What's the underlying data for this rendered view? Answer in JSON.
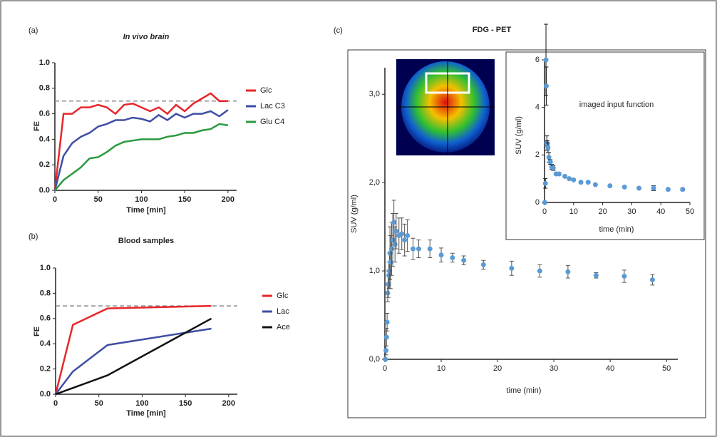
{
  "chart_data": [
    {
      "type": "line",
      "label": "(a)",
      "title": "In vivo brain",
      "xlabel": "Time [min]",
      "ylabel": "FE",
      "x": [
        0,
        10,
        20,
        30,
        40,
        50,
        60,
        70,
        80,
        90,
        100,
        110,
        120,
        130,
        140,
        150,
        160,
        170,
        180,
        190,
        200
      ],
      "series": [
        {
          "name": "Glc",
          "color": "#e8262a",
          "values": [
            0,
            0.6,
            0.6,
            0.65,
            0.65,
            0.67,
            0.65,
            0.6,
            0.67,
            0.68,
            0.65,
            0.62,
            0.65,
            0.6,
            0.67,
            0.62,
            0.68,
            0.72,
            0.76,
            0.7,
            0.7
          ]
        },
        {
          "name": "Lac C3",
          "color": "#3f4ea3",
          "values": [
            0,
            0.27,
            0.37,
            0.42,
            0.45,
            0.5,
            0.52,
            0.55,
            0.55,
            0.57,
            0.56,
            0.54,
            0.59,
            0.55,
            0.6,
            0.57,
            0.6,
            0.6,
            0.62,
            0.58,
            0.63
          ]
        },
        {
          "name": "Glu C4",
          "color": "#2a9a3e",
          "values": [
            0,
            0.08,
            0.13,
            0.18,
            0.25,
            0.26,
            0.3,
            0.35,
            0.38,
            0.39,
            0.4,
            0.4,
            0.4,
            0.42,
            0.43,
            0.45,
            0.45,
            0.47,
            0.48,
            0.52,
            0.51
          ]
        }
      ],
      "reference_line": 0.7,
      "xlim": [
        0,
        210
      ],
      "xticks": [
        0,
        50,
        100,
        150,
        200
      ],
      "ylim": [
        0,
        1
      ],
      "yticks": [
        {
          "value": 0,
          "label": "0.0"
        },
        0.2,
        0.4,
        0.6,
        0.8,
        {
          "value": 1,
          "label": "1.0"
        }
      ]
    },
    {
      "type": "line",
      "label": "(b)",
      "title": "Blood samples",
      "xlabel": "Time [min]",
      "ylabel": "FE",
      "x": [
        0,
        20,
        60,
        180
      ],
      "series": [
        {
          "name": "Glc",
          "color": "#e8262a",
          "values": [
            0,
            0.55,
            0.68,
            0.7
          ]
        },
        {
          "name": "Lac",
          "color": "#3f4ea3",
          "values": [
            0,
            0.18,
            0.39,
            0.52
          ]
        },
        {
          "name": "Ace",
          "color": "#111111",
          "values": [
            0,
            0.05,
            0.15,
            0.6
          ]
        }
      ],
      "reference_line": 0.7,
      "xlim": [
        0,
        210
      ],
      "xticks": [
        0,
        50,
        100,
        150,
        200
      ],
      "ylim": [
        0,
        1
      ],
      "yticks": [
        {
          "value": 0,
          "label": "0.0"
        },
        0.2,
        0.4,
        0.6,
        0.8,
        {
          "value": 1,
          "label": "1.0"
        }
      ]
    },
    {
      "type": "scatter",
      "label": "(c)",
      "title": "FDG - PET",
      "xlabel": "time (min)",
      "ylabel": "SUV  (g/ml)",
      "color": "#5b9bd5",
      "errorbar_color": "#555555",
      "x": [
        0.1,
        0.2,
        0.3,
        0.4,
        0.5,
        0.6,
        0.7,
        0.8,
        0.9,
        1.0,
        1.2,
        1.4,
        1.6,
        1.8,
        2.0,
        2.5,
        3.0,
        3.5,
        4.0,
        5.0,
        6,
        8,
        10,
        12,
        14,
        17.5,
        22.5,
        27.5,
        32.5,
        37.5,
        42.5,
        47.5
      ],
      "values": [
        0.0,
        0.1,
        0.25,
        0.42,
        0.75,
        0.85,
        0.95,
        1.0,
        1.2,
        1.1,
        1.25,
        1.35,
        1.55,
        1.3,
        1.45,
        1.4,
        1.42,
        1.35,
        1.4,
        1.25,
        1.25,
        1.25,
        1.18,
        1.15,
        1.12,
        1.07,
        1.03,
        1.0,
        0.99,
        0.95,
        0.94,
        0.9
      ],
      "errors": [
        0,
        0.05,
        0.1,
        0.1,
        0.1,
        0.15,
        0.15,
        0.2,
        0.3,
        0.3,
        0.3,
        0.3,
        0.25,
        0.2,
        0.2,
        0.2,
        0.18,
        0.18,
        0.18,
        0.12,
        0.1,
        0.1,
        0.08,
        0.05,
        0.05,
        0.05,
        0.08,
        0.07,
        0.07,
        0.03,
        0.07,
        0.06
      ],
      "xlim": [
        0,
        52
      ],
      "xticks": [
        0,
        10,
        20,
        30,
        40,
        50
      ],
      "ylim": [
        0,
        3.3
      ],
      "yticks": [
        {
          "value": 0,
          "label": "0,0"
        },
        {
          "value": 1,
          "label": "1,0"
        },
        {
          "value": 2,
          "label": "2,0"
        },
        {
          "value": 3,
          "label": "3,0"
        }
      ]
    },
    {
      "type": "scatter",
      "annotation": "imaged input function",
      "xlabel": "time (min)",
      "ylabel": "SUV (g/ml)",
      "color": "#5b9bd5",
      "errorbar_color": "#111111",
      "x": [
        0.1,
        0.3,
        0.5,
        0.6,
        0.8,
        1,
        1.2,
        1.5,
        2,
        2.5,
        3,
        4,
        5,
        7,
        8.5,
        10,
        12.5,
        15,
        17.5,
        22.5,
        27.5,
        32.5,
        37.5,
        42.5,
        47.5
      ],
      "values": [
        0,
        0.8,
        6.0,
        4.9,
        2.5,
        2.4,
        2.3,
        1.9,
        1.7,
        1.5,
        1.45,
        1.2,
        1.2,
        1.1,
        1.0,
        0.95,
        0.85,
        0.85,
        0.75,
        0.7,
        0.65,
        0.6,
        0.6,
        0.55,
        0.55
      ],
      "errors": [
        0,
        0.2,
        1.5,
        0.8,
        0.3,
        0.2,
        0.2,
        0.2,
        0.1,
        0.1,
        0.1,
        0.05,
        0.05,
        0.05,
        0.03,
        0.03,
        0.03,
        0.03,
        0.03,
        0.03,
        0.03,
        0.03,
        0.1,
        0.03,
        0.05
      ],
      "xlim": [
        0,
        50
      ],
      "xticks": [
        0,
        10,
        20,
        30,
        40,
        50
      ],
      "ylim": [
        0,
        6
      ],
      "yticks": [
        0,
        2,
        4,
        6
      ]
    }
  ]
}
